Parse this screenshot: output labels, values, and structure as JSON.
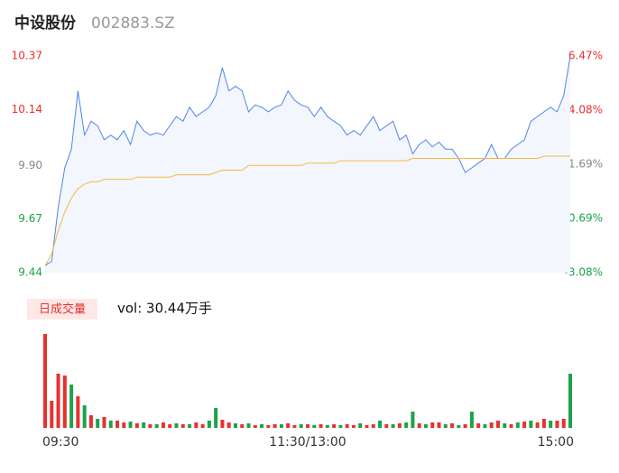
{
  "chart_data": [
    {
      "type": "line",
      "title": "中设股份",
      "subtitle": "002883.SZ",
      "x": [
        0,
        3,
        6,
        9,
        12,
        15,
        18,
        21,
        24,
        27,
        30,
        33,
        36,
        39,
        42,
        45,
        48,
        51,
        54,
        57,
        60,
        63,
        66,
        69,
        72,
        75,
        78,
        81,
        84,
        87,
        90,
        93,
        96,
        99,
        102,
        105,
        108,
        111,
        114,
        117,
        120,
        123,
        126,
        129,
        132,
        135,
        138,
        141,
        144,
        147,
        150,
        153,
        156,
        159,
        162,
        165,
        168,
        171,
        174,
        177,
        180,
        183,
        186,
        189,
        192,
        195,
        198,
        201,
        204,
        207,
        210,
        213,
        216,
        219,
        222,
        225,
        228,
        231,
        234,
        237,
        240
      ],
      "xlim": [
        0,
        240
      ],
      "ylim": [
        9.44,
        10.37
      ],
      "yticks": [
        {
          "value": 10.37,
          "label": "10.37"
        },
        {
          "value": 10.14,
          "label": "10.14"
        },
        {
          "value": 9.9,
          "label": "9.90"
        },
        {
          "value": 9.67,
          "label": "9.67"
        },
        {
          "value": 9.44,
          "label": "9.44"
        }
      ],
      "ytick_colors": [
        "#e8312f",
        "#e8312f",
        "#888888",
        "#1aa34a",
        "#1aa34a"
      ],
      "y2lim": [
        -3.08,
        6.47
      ],
      "y2ticks": [
        {
          "value": 6.47,
          "label": "6.47%"
        },
        {
          "value": 4.08,
          "label": "4.08%"
        },
        {
          "value": 1.69,
          "label": "1.69%"
        },
        {
          "value": -0.69,
          "label": "-0.69%"
        },
        {
          "value": -3.08,
          "label": "-3.08%"
        }
      ],
      "series": [
        {
          "color": "#4f86e8",
          "values": [
            9.47,
            9.49,
            9.72,
            9.89,
            9.97,
            10.22,
            10.03,
            10.09,
            10.07,
            10.01,
            10.03,
            10.01,
            10.05,
            9.99,
            10.09,
            10.05,
            10.03,
            10.04,
            10.03,
            10.07,
            10.11,
            10.09,
            10.15,
            10.11,
            10.13,
            10.15,
            10.2,
            10.32,
            10.22,
            10.24,
            10.22,
            10.13,
            10.16,
            10.15,
            10.13,
            10.15,
            10.16,
            10.22,
            10.18,
            10.16,
            10.15,
            10.11,
            10.15,
            10.11,
            10.09,
            10.07,
            10.03,
            10.05,
            10.03,
            10.07,
            10.11,
            10.05,
            10.07,
            10.09,
            10.01,
            10.03,
            9.95,
            9.99,
            10.01,
            9.98,
            10.0,
            9.97,
            9.97,
            9.93,
            9.87,
            9.89,
            9.91,
            9.93,
            9.99,
            9.93,
            9.93,
            9.97,
            9.99,
            10.01,
            10.09,
            10.11,
            10.13,
            10.15,
            10.13,
            10.2,
            10.37
          ]
        },
        {
          "color": "#f5b942",
          "values": [
            9.47,
            9.52,
            9.62,
            9.7,
            9.76,
            9.8,
            9.82,
            9.83,
            9.83,
            9.84,
            9.84,
            9.84,
            9.84,
            9.84,
            9.85,
            9.85,
            9.85,
            9.85,
            9.85,
            9.85,
            9.86,
            9.86,
            9.86,
            9.86,
            9.86,
            9.86,
            9.87,
            9.88,
            9.88,
            9.88,
            9.88,
            9.9,
            9.9,
            9.9,
            9.9,
            9.9,
            9.9,
            9.9,
            9.9,
            9.9,
            9.91,
            9.91,
            9.91,
            9.91,
            9.91,
            9.92,
            9.92,
            9.92,
            9.92,
            9.92,
            9.92,
            9.92,
            9.92,
            9.92,
            9.92,
            9.92,
            9.93,
            9.93,
            9.93,
            9.93,
            9.93,
            9.93,
            9.93,
            9.93,
            9.93,
            9.93,
            9.93,
            9.93,
            9.93,
            9.93,
            9.93,
            9.93,
            9.93,
            9.93,
            9.93,
            9.93,
            9.94,
            9.94,
            9.94,
            9.94,
            9.94
          ]
        }
      ]
    },
    {
      "type": "bar",
      "legend_label": "日成交量",
      "annotation": "vol: 30.44万手",
      "x": [
        0,
        3,
        6,
        9,
        12,
        15,
        18,
        21,
        24,
        27,
        30,
        33,
        36,
        39,
        42,
        45,
        48,
        51,
        54,
        57,
        60,
        63,
        66,
        69,
        72,
        75,
        78,
        81,
        84,
        87,
        90,
        93,
        96,
        99,
        102,
        105,
        108,
        111,
        114,
        117,
        120,
        123,
        126,
        129,
        132,
        135,
        138,
        141,
        144,
        147,
        150,
        153,
        156,
        159,
        162,
        165,
        168,
        171,
        174,
        177,
        180,
        183,
        186,
        189,
        192,
        195,
        198,
        201,
        204,
        207,
        210,
        213,
        216,
        219,
        222,
        225,
        228,
        231,
        234,
        237,
        240
      ],
      "xlim": [
        0,
        240
      ],
      "xticks": [
        {
          "value": 0,
          "label": "09:30"
        },
        {
          "value": 120,
          "label": "11:30/13:00"
        },
        {
          "value": 240,
          "label": "15:00"
        }
      ],
      "ylim": [
        0,
        10400
      ],
      "values": [
        10400,
        3000,
        6000,
        5800,
        4800,
        3500,
        2500,
        1400,
        1000,
        1200,
        800,
        800,
        600,
        700,
        500,
        600,
        400,
        400,
        600,
        400,
        500,
        400,
        400,
        600,
        400,
        800,
        2200,
        900,
        600,
        500,
        400,
        500,
        300,
        400,
        300,
        400,
        400,
        500,
        300,
        400,
        400,
        300,
        400,
        300,
        400,
        300,
        400,
        300,
        500,
        300,
        400,
        800,
        400,
        400,
        500,
        600,
        1800,
        500,
        400,
        600,
        600,
        400,
        500,
        300,
        400,
        1800,
        500,
        400,
        600,
        800,
        500,
        400,
        600,
        700,
        800,
        600,
        1000,
        800,
        800,
        1000,
        6000
      ],
      "colors": [
        "#e8312f",
        "#e8312f",
        "#e8312f",
        "#e8312f",
        "#1aa34a",
        "#e8312f",
        "#1aa34a",
        "#e8312f",
        "#1aa34a",
        "#e8312f",
        "#1aa34a",
        "#e8312f",
        "#e8312f",
        "#1aa34a",
        "#e8312f",
        "#1aa34a",
        "#e8312f",
        "#1aa34a",
        "#e8312f",
        "#e8312f",
        "#1aa34a",
        "#e8312f",
        "#1aa34a",
        "#e8312f",
        "#e8312f",
        "#1aa34a",
        "#1aa34a",
        "#e8312f",
        "#e8312f",
        "#1aa34a",
        "#e8312f",
        "#1aa34a",
        "#e8312f",
        "#1aa34a",
        "#e8312f",
        "#e8312f",
        "#1aa34a",
        "#e8312f",
        "#e8312f",
        "#1aa34a",
        "#e8312f",
        "#1aa34a",
        "#e8312f",
        "#1aa34a",
        "#e8312f",
        "#1aa34a",
        "#e8312f",
        "#e8312f",
        "#1aa34a",
        "#e8312f",
        "#e8312f",
        "#1aa34a",
        "#e8312f",
        "#1aa34a",
        "#e8312f",
        "#1aa34a",
        "#1aa34a",
        "#e8312f",
        "#1aa34a",
        "#e8312f",
        "#e8312f",
        "#1aa34a",
        "#e8312f",
        "#1aa34a",
        "#e8312f",
        "#1aa34a",
        "#e8312f",
        "#1aa34a",
        "#e8312f",
        "#e8312f",
        "#1aa34a",
        "#e8312f",
        "#1aa34a",
        "#e8312f",
        "#1aa34a",
        "#e8312f",
        "#e8312f",
        "#1aa34a",
        "#e8312f",
        "#e8312f",
        "#1aa34a"
      ]
    }
  ]
}
